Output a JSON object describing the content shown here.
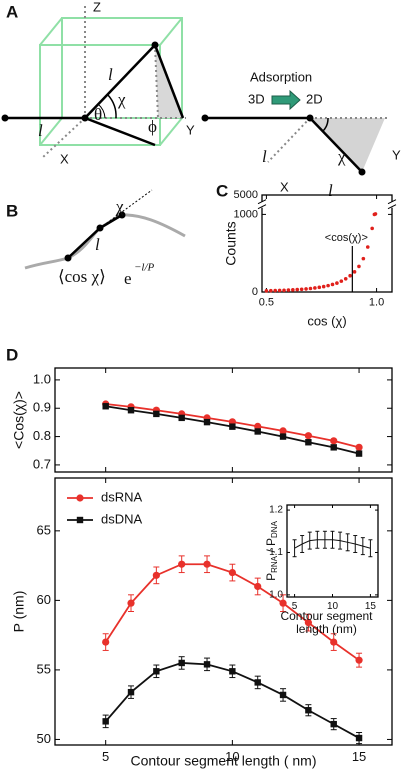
{
  "panel_labels": [
    "A",
    "B",
    "C",
    "D"
  ],
  "diagram_a": {
    "z": "Z",
    "l_tilted": "l",
    "chi": "χ",
    "theta": "θ",
    "phi": "ϕ",
    "y": "Y",
    "l_flat": "l",
    "x": "X",
    "process": "Adsorption",
    "from": "3D",
    "to": "2D",
    "l_2d_left": "l",
    "chi_2d": "χ",
    "y_2d": "Y",
    "x_2d": "X",
    "l_2d": "l"
  },
  "diagram_b": {
    "chi": "χ",
    "l": "l",
    "formula": "⟨cos χ⟩",
    "exp_base": "e",
    "exponent": "−l/P"
  },
  "chart_data": [
    {
      "type": "scatter",
      "xlabel": "cos (χ)",
      "ylabel": "Counts",
      "annotation": "<cos(χ)>",
      "annotation_x": 0.89,
      "x": [
        0.5,
        0.52,
        0.54,
        0.56,
        0.58,
        0.6,
        0.62,
        0.64,
        0.66,
        0.68,
        0.7,
        0.72,
        0.74,
        0.76,
        0.78,
        0.8,
        0.82,
        0.84,
        0.86,
        0.88,
        0.9,
        0.92,
        0.94,
        0.96,
        0.98,
        0.99,
        0.995
      ],
      "values": [
        15,
        17,
        19,
        20,
        22,
        25,
        28,
        31,
        35,
        40,
        45,
        52,
        60,
        70,
        82,
        97,
        115,
        140,
        170,
        210,
        260,
        330,
        430,
        580,
        820,
        1000,
        1100
      ],
      "color": "#e0201b",
      "xlim": [
        0.48,
        1.07
      ],
      "ylim": [
        0,
        5000
      ],
      "xticks": [
        0.5,
        {
          "value": 1,
          "label": "1.0"
        }
      ],
      "yticks": [
        0,
        1000,
        5000
      ],
      "axis_break": true
    },
    {
      "type": "line",
      "ylabel": "<Cos(χ)>",
      "x": [
        5,
        6,
        7,
        8,
        9,
        10,
        11,
        12,
        13,
        14,
        15
      ],
      "series": [
        {
          "color": "#e8312b",
          "marker": "circle",
          "values": [
            0.915,
            0.905,
            0.893,
            0.88,
            0.866,
            0.852,
            0.836,
            0.82,
            0.803,
            0.785,
            0.762
          ]
        },
        {
          "color": "#111111",
          "marker": "square",
          "values": [
            0.907,
            0.893,
            0.88,
            0.866,
            0.851,
            0.835,
            0.818,
            0.8,
            0.78,
            0.762,
            0.74
          ]
        }
      ],
      "xlim": [
        3,
        16.3
      ],
      "ylim": [
        0.675,
        1.042
      ],
      "xticks": [
        5,
        10,
        15
      ],
      "yticks": [
        0.7,
        0.8,
        0.9,
        {
          "value": 1,
          "label": "1.0"
        }
      ]
    },
    {
      "type": "line",
      "xlabel": "Contour segment length ( nm)",
      "ylabel": "P (nm)",
      "x": [
        5,
        6,
        7,
        8,
        9,
        10,
        11,
        12,
        13,
        14,
        15
      ],
      "series": [
        {
          "name": "dsRNA",
          "color": "#e8312b",
          "marker": "circle",
          "values": [
            57.0,
            59.8,
            61.8,
            62.6,
            62.6,
            62.0,
            61.0,
            59.8,
            58.4,
            57.0,
            55.7
          ],
          "errors": [
            0.6,
            0.6,
            0.6,
            0.6,
            0.6,
            0.6,
            0.6,
            0.6,
            0.6,
            0.6,
            0.5
          ]
        },
        {
          "name": "dsDNA",
          "color": "#111111",
          "marker": "square",
          "values": [
            51.3,
            53.4,
            54.9,
            55.5,
            55.4,
            54.9,
            54.1,
            53.2,
            52.1,
            51.1,
            50.1
          ],
          "errors": [
            0.45,
            0.45,
            0.45,
            0.45,
            0.45,
            0.45,
            0.45,
            0.45,
            0.4,
            0.4,
            0.4
          ]
        }
      ],
      "xlim": [
        3,
        16.3
      ],
      "ylim": [
        49.6,
        68.8
      ],
      "xticks": [
        5,
        10,
        15
      ],
      "yticks": [
        50,
        55,
        60,
        65
      ],
      "legend": "upper left"
    },
    {
      "type": "line",
      "xlabel_lines": [
        "Contour segment",
        "length (nm)"
      ],
      "ylabel_parts": [
        "P",
        "RNA",
        " / P",
        "DNA"
      ],
      "x": [
        5,
        6,
        7,
        8,
        9,
        10,
        11,
        12,
        13,
        14,
        15
      ],
      "series": [
        {
          "color": "#111111",
          "marker": "none",
          "values": [
            1.11,
            1.12,
            1.128,
            1.13,
            1.13,
            1.13,
            1.128,
            1.124,
            1.12,
            1.115,
            1.11
          ],
          "errors": [
            0.02,
            0.02,
            0.02,
            0.02,
            0.02,
            0.02,
            0.02,
            0.02,
            0.02,
            0.02,
            0.02
          ]
        }
      ],
      "xlim": [
        4,
        16
      ],
      "ylim": [
        0.995,
        1.212
      ],
      "xticks": [
        5,
        10,
        15
      ],
      "yticks": [
        {
          "value": 1,
          "label": "1.0"
        },
        1.1,
        1.2
      ]
    }
  ]
}
